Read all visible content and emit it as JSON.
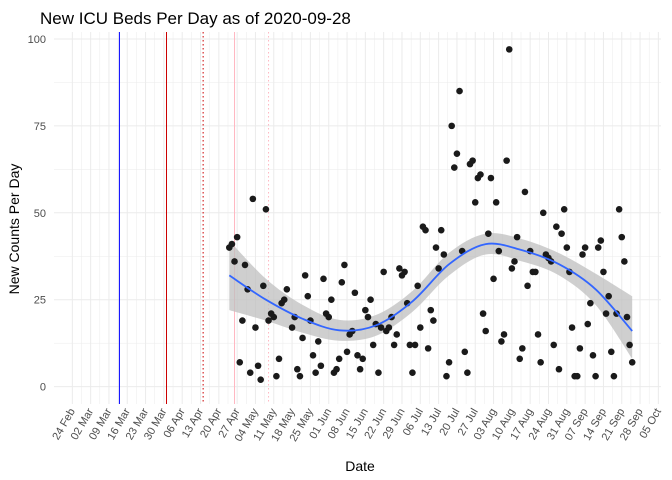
{
  "chart_data": {
    "type": "scatter",
    "title": "New ICU Beds Per Day as of 2020-09-28",
    "xlabel": "Date",
    "ylabel": "New Counts Per Day",
    "ylim": [
      -5,
      102
    ],
    "y_ticks": [
      0,
      25,
      50,
      75,
      100
    ],
    "xlim": [
      "2020-02-17",
      "2020-10-06"
    ],
    "x_ticks": [
      "24 Feb",
      "02 Mar",
      "09 Mar",
      "16 Mar",
      "23 Mar",
      "30 Mar",
      "06 Apr",
      "13 Apr",
      "20 Apr",
      "27 Apr",
      "04 May",
      "11 May",
      "18 May",
      "25 May",
      "01 Jun",
      "08 Jun",
      "15 Jun",
      "22 Jun",
      "29 Jun",
      "06 Jul",
      "13 Jul",
      "20 Jul",
      "27 Jul",
      "03 Aug",
      "10 Aug",
      "17 Aug",
      "24 Aug",
      "31 Aug",
      "07 Sep",
      "14 Sep",
      "21 Sep",
      "28 Sep",
      "05 Oct"
    ],
    "x_tick_dates": [
      "2020-02-24",
      "2020-03-02",
      "2020-03-09",
      "2020-03-16",
      "2020-03-23",
      "2020-03-30",
      "2020-04-06",
      "2020-04-13",
      "2020-04-20",
      "2020-04-27",
      "2020-05-04",
      "2020-05-11",
      "2020-05-18",
      "2020-05-25",
      "2020-06-01",
      "2020-06-08",
      "2020-06-15",
      "2020-06-22",
      "2020-06-29",
      "2020-07-06",
      "2020-07-13",
      "2020-07-20",
      "2020-07-27",
      "2020-08-03",
      "2020-08-10",
      "2020-08-17",
      "2020-08-24",
      "2020-08-31",
      "2020-09-07",
      "2020-09-14",
      "2020-09-21",
      "2020-09-28",
      "2020-10-05"
    ],
    "grid": true,
    "vertical_lines": [
      {
        "date": "2020-03-13",
        "color": "#0000ff",
        "style": "solid"
      },
      {
        "date": "2020-03-31",
        "color": "#cc0000",
        "style": "solid"
      },
      {
        "date": "2020-04-14",
        "color": "#cc0000",
        "style": "dotted"
      },
      {
        "date": "2020-04-26",
        "color": "#ffb6c1",
        "style": "solid"
      },
      {
        "date": "2020-05-09",
        "color": "#ffb6c1",
        "style": "dotted"
      }
    ],
    "points": [
      {
        "x": "2020-04-24",
        "y": 40
      },
      {
        "x": "2020-04-25",
        "y": 41
      },
      {
        "x": "2020-04-26",
        "y": 36
      },
      {
        "x": "2020-04-27",
        "y": 43
      },
      {
        "x": "2020-04-28",
        "y": 7
      },
      {
        "x": "2020-04-29",
        "y": 19
      },
      {
        "x": "2020-04-30",
        "y": 35
      },
      {
        "x": "2020-05-01",
        "y": 28
      },
      {
        "x": "2020-05-02",
        "y": 4
      },
      {
        "x": "2020-05-03",
        "y": 54
      },
      {
        "x": "2020-05-04",
        "y": 17
      },
      {
        "x": "2020-05-05",
        "y": 6
      },
      {
        "x": "2020-05-06",
        "y": 2
      },
      {
        "x": "2020-05-07",
        "y": 29
      },
      {
        "x": "2020-05-08",
        "y": 51
      },
      {
        "x": "2020-05-09",
        "y": 19
      },
      {
        "x": "2020-05-10",
        "y": 21
      },
      {
        "x": "2020-05-11",
        "y": 20
      },
      {
        "x": "2020-05-12",
        "y": 3
      },
      {
        "x": "2020-05-13",
        "y": 8
      },
      {
        "x": "2020-05-14",
        "y": 24
      },
      {
        "x": "2020-05-15",
        "y": 25
      },
      {
        "x": "2020-05-16",
        "y": 28
      },
      {
        "x": "2020-05-18",
        "y": 17
      },
      {
        "x": "2020-05-19",
        "y": 20
      },
      {
        "x": "2020-05-20",
        "y": 5
      },
      {
        "x": "2020-05-21",
        "y": 3
      },
      {
        "x": "2020-05-22",
        "y": 14
      },
      {
        "x": "2020-05-23",
        "y": 32
      },
      {
        "x": "2020-05-24",
        "y": 26
      },
      {
        "x": "2020-05-25",
        "y": 19
      },
      {
        "x": "2020-05-26",
        "y": 9
      },
      {
        "x": "2020-05-27",
        "y": 4
      },
      {
        "x": "2020-05-28",
        "y": 13
      },
      {
        "x": "2020-05-29",
        "y": 6
      },
      {
        "x": "2020-05-30",
        "y": 31
      },
      {
        "x": "2020-05-31",
        "y": 21
      },
      {
        "x": "2020-06-01",
        "y": 20
      },
      {
        "x": "2020-06-02",
        "y": 25
      },
      {
        "x": "2020-06-03",
        "y": 4
      },
      {
        "x": "2020-06-04",
        "y": 5
      },
      {
        "x": "2020-06-05",
        "y": 8
      },
      {
        "x": "2020-06-06",
        "y": 30
      },
      {
        "x": "2020-06-07",
        "y": 35
      },
      {
        "x": "2020-06-08",
        "y": 10
      },
      {
        "x": "2020-06-09",
        "y": 15
      },
      {
        "x": "2020-06-10",
        "y": 16
      },
      {
        "x": "2020-06-11",
        "y": 27
      },
      {
        "x": "2020-06-12",
        "y": 9
      },
      {
        "x": "2020-06-13",
        "y": 5
      },
      {
        "x": "2020-06-14",
        "y": 8
      },
      {
        "x": "2020-06-15",
        "y": 22
      },
      {
        "x": "2020-06-16",
        "y": 20
      },
      {
        "x": "2020-06-17",
        "y": 25
      },
      {
        "x": "2020-06-18",
        "y": 12
      },
      {
        "x": "2020-06-19",
        "y": 18
      },
      {
        "x": "2020-06-20",
        "y": 4
      },
      {
        "x": "2020-06-21",
        "y": 17
      },
      {
        "x": "2020-06-22",
        "y": 33
      },
      {
        "x": "2020-06-23",
        "y": 16
      },
      {
        "x": "2020-06-24",
        "y": 17
      },
      {
        "x": "2020-06-25",
        "y": 20
      },
      {
        "x": "2020-06-26",
        "y": 12
      },
      {
        "x": "2020-06-27",
        "y": 15
      },
      {
        "x": "2020-06-28",
        "y": 34
      },
      {
        "x": "2020-06-29",
        "y": 32
      },
      {
        "x": "2020-06-30",
        "y": 33
      },
      {
        "x": "2020-07-01",
        "y": 24
      },
      {
        "x": "2020-07-02",
        "y": 12
      },
      {
        "x": "2020-07-03",
        "y": 4
      },
      {
        "x": "2020-07-04",
        "y": 12
      },
      {
        "x": "2020-07-05",
        "y": 29
      },
      {
        "x": "2020-07-06",
        "y": 17
      },
      {
        "x": "2020-07-07",
        "y": 46
      },
      {
        "x": "2020-07-08",
        "y": 45
      },
      {
        "x": "2020-07-09",
        "y": 11
      },
      {
        "x": "2020-07-10",
        "y": 22
      },
      {
        "x": "2020-07-11",
        "y": 19
      },
      {
        "x": "2020-07-12",
        "y": 40
      },
      {
        "x": "2020-07-13",
        "y": 34
      },
      {
        "x": "2020-07-14",
        "y": 45
      },
      {
        "x": "2020-07-15",
        "y": 38
      },
      {
        "x": "2020-07-16",
        "y": 3
      },
      {
        "x": "2020-07-17",
        "y": 7
      },
      {
        "x": "2020-07-18",
        "y": 75
      },
      {
        "x": "2020-07-19",
        "y": 63
      },
      {
        "x": "2020-07-20",
        "y": 67
      },
      {
        "x": "2020-07-21",
        "y": 85
      },
      {
        "x": "2020-07-22",
        "y": 39
      },
      {
        "x": "2020-07-23",
        "y": 10
      },
      {
        "x": "2020-07-24",
        "y": 4
      },
      {
        "x": "2020-07-25",
        "y": 64
      },
      {
        "x": "2020-07-26",
        "y": 65
      },
      {
        "x": "2020-07-27",
        "y": 53
      },
      {
        "x": "2020-07-28",
        "y": 60
      },
      {
        "x": "2020-07-29",
        "y": 61
      },
      {
        "x": "2020-07-30",
        "y": 21
      },
      {
        "x": "2020-07-31",
        "y": 16
      },
      {
        "x": "2020-08-01",
        "y": 44
      },
      {
        "x": "2020-08-02",
        "y": 60
      },
      {
        "x": "2020-08-03",
        "y": 31
      },
      {
        "x": "2020-08-04",
        "y": 53
      },
      {
        "x": "2020-08-05",
        "y": 39
      },
      {
        "x": "2020-08-06",
        "y": 13
      },
      {
        "x": "2020-08-07",
        "y": 15
      },
      {
        "x": "2020-08-08",
        "y": 65
      },
      {
        "x": "2020-08-09",
        "y": 97
      },
      {
        "x": "2020-08-10",
        "y": 34
      },
      {
        "x": "2020-08-11",
        "y": 36
      },
      {
        "x": "2020-08-12",
        "y": 43
      },
      {
        "x": "2020-08-13",
        "y": 8
      },
      {
        "x": "2020-08-14",
        "y": 11
      },
      {
        "x": "2020-08-15",
        "y": 56
      },
      {
        "x": "2020-08-16",
        "y": 29
      },
      {
        "x": "2020-08-17",
        "y": 39
      },
      {
        "x": "2020-08-18",
        "y": 33
      },
      {
        "x": "2020-08-19",
        "y": 33
      },
      {
        "x": "2020-08-20",
        "y": 15
      },
      {
        "x": "2020-08-21",
        "y": 7
      },
      {
        "x": "2020-08-22",
        "y": 50
      },
      {
        "x": "2020-08-23",
        "y": 38
      },
      {
        "x": "2020-08-24",
        "y": 37
      },
      {
        "x": "2020-08-25",
        "y": 36
      },
      {
        "x": "2020-08-26",
        "y": 12
      },
      {
        "x": "2020-08-27",
        "y": 46
      },
      {
        "x": "2020-08-28",
        "y": 5
      },
      {
        "x": "2020-08-29",
        "y": 44
      },
      {
        "x": "2020-08-30",
        "y": 51
      },
      {
        "x": "2020-08-31",
        "y": 40
      },
      {
        "x": "2020-09-01",
        "y": 33
      },
      {
        "x": "2020-09-02",
        "y": 17
      },
      {
        "x": "2020-09-03",
        "y": 3
      },
      {
        "x": "2020-09-04",
        "y": 3
      },
      {
        "x": "2020-09-05",
        "y": 11
      },
      {
        "x": "2020-09-06",
        "y": 38
      },
      {
        "x": "2020-09-07",
        "y": 40
      },
      {
        "x": "2020-09-08",
        "y": 18
      },
      {
        "x": "2020-09-09",
        "y": 24
      },
      {
        "x": "2020-09-10",
        "y": 9
      },
      {
        "x": "2020-09-11",
        "y": 3
      },
      {
        "x": "2020-09-12",
        "y": 40
      },
      {
        "x": "2020-09-13",
        "y": 42
      },
      {
        "x": "2020-09-14",
        "y": 33
      },
      {
        "x": "2020-09-15",
        "y": 21
      },
      {
        "x": "2020-09-16",
        "y": 26
      },
      {
        "x": "2020-09-17",
        "y": 10
      },
      {
        "x": "2020-09-18",
        "y": 3
      },
      {
        "x": "2020-09-19",
        "y": 21
      },
      {
        "x": "2020-09-20",
        "y": 51
      },
      {
        "x": "2020-09-21",
        "y": 43
      },
      {
        "x": "2020-09-22",
        "y": 36
      },
      {
        "x": "2020-09-23",
        "y": 20
      },
      {
        "x": "2020-09-24",
        "y": 12
      },
      {
        "x": "2020-09-25",
        "y": 7
      }
    ],
    "smooth": {
      "x": [
        "2020-04-24",
        "2020-05-08",
        "2020-05-22",
        "2020-06-05",
        "2020-06-19",
        "2020-07-03",
        "2020-07-17",
        "2020-07-31",
        "2020-08-14",
        "2020-08-28",
        "2020-09-11",
        "2020-09-25"
      ],
      "y": [
        32,
        25,
        19.5,
        16.2,
        17.6,
        24.5,
        35.2,
        41,
        39.2,
        35.2,
        28,
        16
      ],
      "lower": [
        22,
        19,
        15.5,
        13.2,
        14.6,
        21.5,
        32,
        38,
        36,
        32,
        23.5,
        8
      ],
      "upper": [
        42,
        31,
        23.5,
        19.2,
        20.6,
        27.5,
        38.5,
        44,
        42.4,
        38.4,
        32.5,
        26
      ],
      "line_color": "#3366ff",
      "band_color": "#bfbfbf"
    },
    "point_color": "#1a1a1a",
    "panel_background": "#ffffff",
    "grid_color": "#ebebeb"
  }
}
